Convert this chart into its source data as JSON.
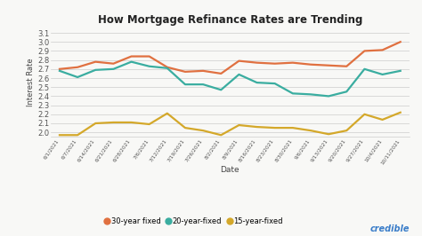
{
  "title": "How Mortgage Refinance Rates are Trending",
  "xlabel": "Date",
  "ylabel": "Interest Rate",
  "xlabels": [
    "6/1/2021",
    "6/7/2021",
    "6/14/2021",
    "6/21/2021",
    "6/28/2021",
    "7/6/2021",
    "7/12/2021",
    "7/19/2021",
    "7/26/2021",
    "8/2/2021",
    "8/9/2021",
    "8/16/2021",
    "8/23/2021",
    "8/30/2021",
    "9/6/2021",
    "9/13/2021",
    "9/20/2021",
    "9/27/2021",
    "10/4/2021",
    "10/11/2021"
  ],
  "y30": [
    2.7,
    2.72,
    2.78,
    2.76,
    2.84,
    2.84,
    2.72,
    2.67,
    2.68,
    2.65,
    2.79,
    2.77,
    2.76,
    2.77,
    2.75,
    2.74,
    2.73,
    2.9,
    2.91,
    3.0
  ],
  "y20": [
    2.68,
    2.61,
    2.69,
    2.7,
    2.78,
    2.73,
    2.71,
    2.53,
    2.53,
    2.47,
    2.64,
    2.55,
    2.54,
    2.43,
    2.42,
    2.4,
    2.45,
    2.7,
    2.64,
    2.68
  ],
  "y15": [
    1.97,
    1.97,
    2.1,
    2.11,
    2.11,
    2.09,
    2.21,
    2.05,
    2.02,
    1.97,
    2.08,
    2.06,
    2.05,
    2.05,
    2.02,
    1.98,
    2.02,
    2.2,
    2.14,
    2.22
  ],
  "color30": "#e07040",
  "color20": "#3aada0",
  "color15": "#d4a82a",
  "ylim": [
    1.95,
    3.15
  ],
  "yticks": [
    2.0,
    2.1,
    2.2,
    2.3,
    2.4,
    2.5,
    2.6,
    2.7,
    2.8,
    2.9,
    3.0,
    3.1
  ],
  "legend_labels": [
    "30-year fixed",
    "20-year-fixed",
    "15-year-fixed"
  ],
  "bg_color": "#f8f8f6",
  "credible_color": "#3a7dc9",
  "linewidth": 1.6
}
